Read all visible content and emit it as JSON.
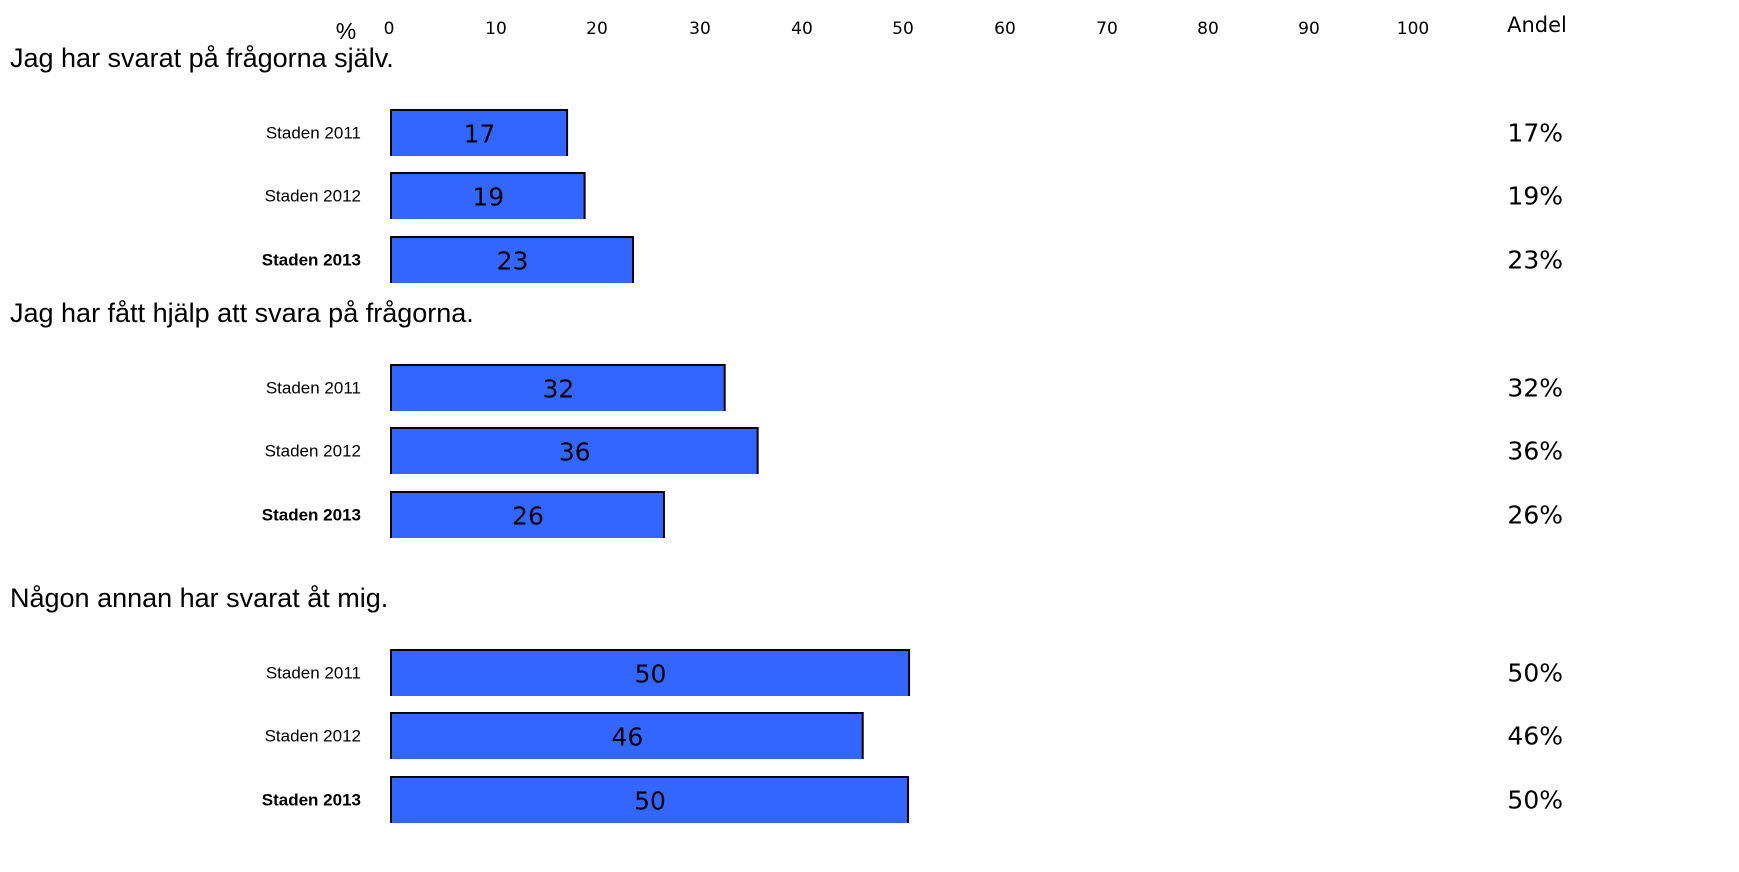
{
  "chart_data": {
    "type": "bar",
    "orientation": "horizontal",
    "x_unit_label": "%",
    "right_column_header": "Andel",
    "xlim": [
      0,
      100
    ],
    "x_ticks": [
      "0",
      "10",
      "20",
      "30",
      "40",
      "50",
      "60",
      "70",
      "80",
      "90",
      "100"
    ],
    "bar_color": "#3366ff",
    "groups": [
      {
        "title": "Jag har svarat på frågorna själv.",
        "rows": [
          {
            "label": "Staden 2011",
            "bold": false,
            "value": 17,
            "value_label": "17",
            "share_label": "17%"
          },
          {
            "label": "Staden 2012",
            "bold": false,
            "value": 18.7,
            "value_label": "19",
            "share_label": "19%"
          },
          {
            "label": "Staden 2013",
            "bold": true,
            "value": 23.4,
            "value_label": "23",
            "share_label": "23%"
          }
        ]
      },
      {
        "title": "Jag har fått hjälp att svara på frågorna.",
        "rows": [
          {
            "label": "Staden 2011",
            "bold": false,
            "value": 32.3,
            "value_label": "32",
            "share_label": "32%"
          },
          {
            "label": "Staden 2012",
            "bold": false,
            "value": 35.5,
            "value_label": "36",
            "share_label": "36%"
          },
          {
            "label": "Staden 2013",
            "bold": true,
            "value": 26.4,
            "value_label": "26",
            "share_label": "26%"
          }
        ]
      },
      {
        "title": "Någon annan har svarat åt mig.",
        "rows": [
          {
            "label": "Staden 2011",
            "bold": false,
            "value": 50.2,
            "value_label": "50",
            "share_label": "50%"
          },
          {
            "label": "Staden 2012",
            "bold": false,
            "value": 45.7,
            "value_label": "46",
            "share_label": "46%"
          },
          {
            "label": "Staden 2013",
            "bold": true,
            "value": 50.1,
            "value_label": "50",
            "share_label": "50%"
          }
        ]
      }
    ]
  }
}
